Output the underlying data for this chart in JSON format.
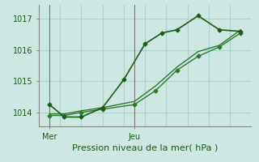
{
  "background_color": "#cde8e2",
  "grid_color": "#aad4cc",
  "line_color_dark": "#1a5c1a",
  "line_color_med": "#2d7a2d",
  "title": "Pression niveau de la mer( hPa )",
  "yticks": [
    1014,
    1015,
    1016,
    1017
  ],
  "ylim": [
    1013.55,
    1017.45
  ],
  "xtick_labels": [
    "Mer",
    "Jeu"
  ],
  "xtick_positions": [
    0.5,
    4.5
  ],
  "xlim": [
    0,
    10
  ],
  "series1_x": [
    0.5,
    1.2,
    2.0,
    3.0,
    4.0,
    5.0,
    5.8,
    6.5,
    7.5,
    8.5,
    9.5
  ],
  "series1_y": [
    1014.25,
    1013.85,
    1013.85,
    1014.15,
    1015.05,
    1016.2,
    1016.55,
    1016.65,
    1017.1,
    1016.65,
    1016.6
  ],
  "series2_x": [
    0.5,
    1.2,
    2.0,
    3.0,
    4.5,
    5.5,
    6.5,
    7.5,
    8.5,
    9.5
  ],
  "series2_y": [
    1013.9,
    1013.9,
    1014.0,
    1014.1,
    1014.25,
    1014.7,
    1015.35,
    1015.8,
    1016.1,
    1016.55
  ],
  "series3_x": [
    0.5,
    1.2,
    2.0,
    3.0,
    4.5,
    5.5,
    6.5,
    7.5,
    8.5,
    9.5
  ],
  "series3_y": [
    1013.95,
    1013.95,
    1014.05,
    1014.15,
    1014.35,
    1014.85,
    1015.45,
    1015.95,
    1016.15,
    1016.65
  ],
  "vline_x": [
    0.5,
    4.5
  ],
  "marker": "D",
  "markersize": 2.5,
  "linewidth1": 1.2,
  "linewidth2": 1.0,
  "tick_fontsize": 7,
  "xlabel_fontsize": 8
}
